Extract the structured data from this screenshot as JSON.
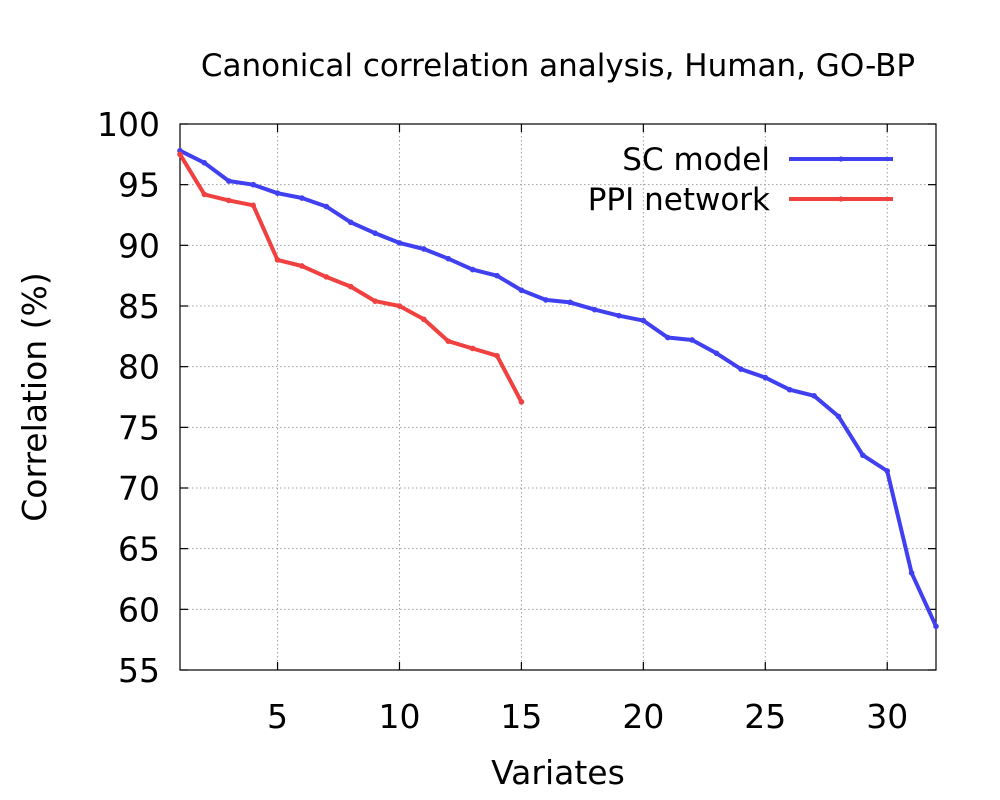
{
  "chart_data": {
    "type": "line",
    "title": "Canonical correlation analysis, Human, GO-BP",
    "xlabel": "Variates",
    "ylabel": "Correlation (%)",
    "xlim": [
      1,
      32
    ],
    "ylim": [
      55,
      100
    ],
    "xticks": [
      5,
      10,
      15,
      20,
      25,
      30
    ],
    "yticks": [
      55,
      60,
      65,
      70,
      75,
      80,
      85,
      90,
      95,
      100
    ],
    "grid": true,
    "legend_position": "top-right",
    "series": [
      {
        "name": "SC model",
        "color": "#4040f0",
        "x": [
          1,
          2,
          3,
          4,
          5,
          6,
          7,
          8,
          9,
          10,
          11,
          12,
          13,
          14,
          15,
          16,
          17,
          18,
          19,
          20,
          21,
          22,
          23,
          24,
          25,
          26,
          27,
          28,
          29,
          30,
          31,
          32
        ],
        "values": [
          97.8,
          96.8,
          95.3,
          95.0,
          94.3,
          93.9,
          93.2,
          91.9,
          91.0,
          90.2,
          89.7,
          88.9,
          88.0,
          87.5,
          86.3,
          85.5,
          85.3,
          84.7,
          84.2,
          83.8,
          82.4,
          82.2,
          81.1,
          79.8,
          79.1,
          78.1,
          77.6,
          75.9,
          72.7,
          71.4,
          63.0,
          58.6
        ]
      },
      {
        "name": "PPI network",
        "color": "#f04040",
        "x": [
          1,
          2,
          3,
          4,
          5,
          6,
          7,
          8,
          9,
          10,
          11,
          12,
          13,
          14,
          15
        ],
        "values": [
          97.5,
          94.2,
          93.7,
          93.3,
          88.8,
          88.3,
          87.4,
          86.6,
          85.4,
          85.0,
          83.9,
          82.1,
          81.5,
          80.9,
          77.1
        ]
      }
    ]
  }
}
